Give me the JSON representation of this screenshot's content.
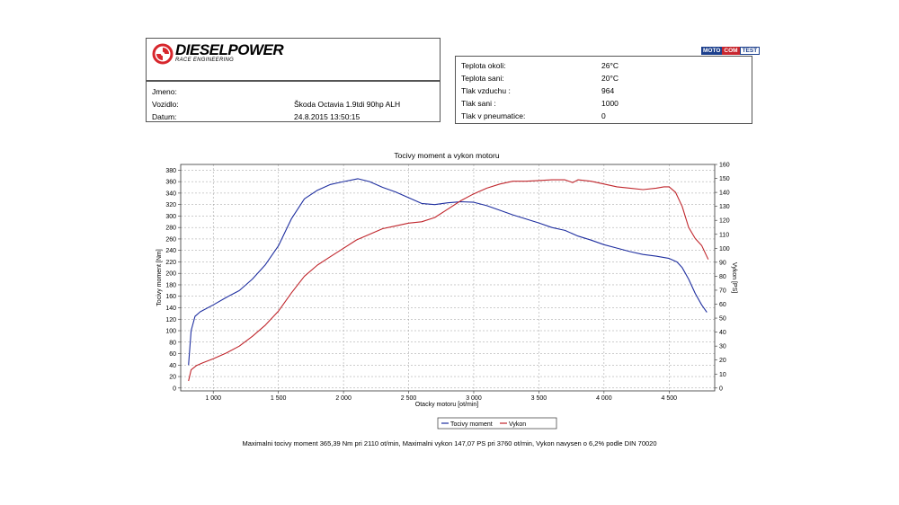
{
  "logo": {
    "brand": "DIESELPOWER",
    "tagline": "RACE ENGINEERING"
  },
  "vehicle_info": [
    {
      "label": "Jmeno:",
      "value": ""
    },
    {
      "label": "Vozidlo:",
      "value": "Škoda Octavia 1.9tdi 90hp ALH"
    },
    {
      "label": "Datum:",
      "value": "24.8.2015 13:50:15"
    }
  ],
  "motocom": {
    "a": "MOTO",
    "b": "COM",
    "c": "TEST"
  },
  "conditions": [
    {
      "label": "Teplota okoli:",
      "value": "26°C"
    },
    {
      "label": "Teplota sani:",
      "value": "20°C"
    },
    {
      "label": "Tlak vzduchu :",
      "value": "964"
    },
    {
      "label": "Tlak sani :",
      "value": "1000"
    },
    {
      "label": "Tlak v pneumatice:",
      "value": "0"
    }
  ],
  "footer_text": "Maximalni tocivy moment 365,39 Nm pri 2110 ot/min,  Maximalni vykon 147,07 PS pri 3760 ot/min,  Vykon navysen o 6,2% podle DIN 70020",
  "chart_data": {
    "type": "line",
    "title": "Tocivy moment a vykon motoru",
    "xlabel": "Otacky motoru [ot/min]",
    "ylabel": "Tocivy moment [Nm]",
    "ylabel_right": "Vykon [PS]",
    "xlim": [
      750,
      4850
    ],
    "ylim": [
      -5,
      390
    ],
    "ylim_right": [
      -2.05,
      160
    ],
    "x_ticks": [
      1000,
      1500,
      2000,
      2500,
      3000,
      3500,
      4000,
      4500
    ],
    "x_tick_labels": [
      "1 000",
      "1 500",
      "2 000",
      "2 500",
      "3 000",
      "3 500",
      "4 000",
      "4 500"
    ],
    "y_ticks": [
      0,
      20,
      40,
      60,
      80,
      100,
      120,
      140,
      160,
      180,
      200,
      220,
      240,
      260,
      280,
      300,
      320,
      340,
      360,
      380
    ],
    "y_ticks_right": [
      0,
      10,
      20,
      30,
      40,
      50,
      60,
      70,
      80,
      90,
      100,
      110,
      120,
      130,
      140,
      150,
      160
    ],
    "grid": true,
    "legend": "bottom-center",
    "series": [
      {
        "name": "Tocivy moment",
        "axis": "left",
        "color": "#1f2fa0",
        "x": [
          810,
          830,
          860,
          900,
          1000,
          1100,
          1200,
          1300,
          1400,
          1500,
          1600,
          1700,
          1800,
          1900,
          2000,
          2110,
          2200,
          2300,
          2400,
          2500,
          2600,
          2700,
          2800,
          2900,
          3000,
          3100,
          3200,
          3300,
          3400,
          3500,
          3600,
          3700,
          3800,
          3900,
          4000,
          4100,
          4200,
          4300,
          4400,
          4500,
          4560,
          4600,
          4650,
          4700,
          4750,
          4790
        ],
        "y": [
          40,
          100,
          125,
          133,
          145,
          158,
          170,
          190,
          215,
          248,
          295,
          330,
          345,
          355,
          360,
          365,
          360,
          350,
          342,
          332,
          322,
          320,
          323,
          325,
          324,
          318,
          310,
          302,
          295,
          288,
          280,
          275,
          265,
          258,
          250,
          244,
          238,
          233,
          230,
          226,
          220,
          210,
          190,
          165,
          145,
          132
        ]
      },
      {
        "name": "Vykon",
        "axis": "right",
        "color": "#c0262c",
        "x": [
          810,
          830,
          870,
          920,
          1000,
          1100,
          1200,
          1300,
          1400,
          1500,
          1600,
          1700,
          1800,
          1900,
          2000,
          2100,
          2200,
          2300,
          2400,
          2500,
          2600,
          2700,
          2800,
          2900,
          3000,
          3100,
          3200,
          3300,
          3400,
          3500,
          3600,
          3700,
          3760,
          3800,
          3900,
          4000,
          4100,
          4200,
          4300,
          4400,
          4460,
          4500,
          4550,
          4600,
          4650,
          4700,
          4750,
          4800
        ],
        "y": [
          5,
          13,
          16,
          18,
          21,
          25,
          30,
          37,
          45,
          55,
          68,
          80,
          88,
          94,
          100,
          106,
          110,
          114,
          116,
          118,
          119,
          122,
          128,
          134,
          139,
          143,
          146,
          148,
          148,
          148.5,
          149,
          149,
          147,
          149,
          148,
          146,
          144,
          143,
          142,
          143,
          144,
          144,
          140,
          130,
          115,
          107,
          102,
          92
        ]
      }
    ]
  }
}
